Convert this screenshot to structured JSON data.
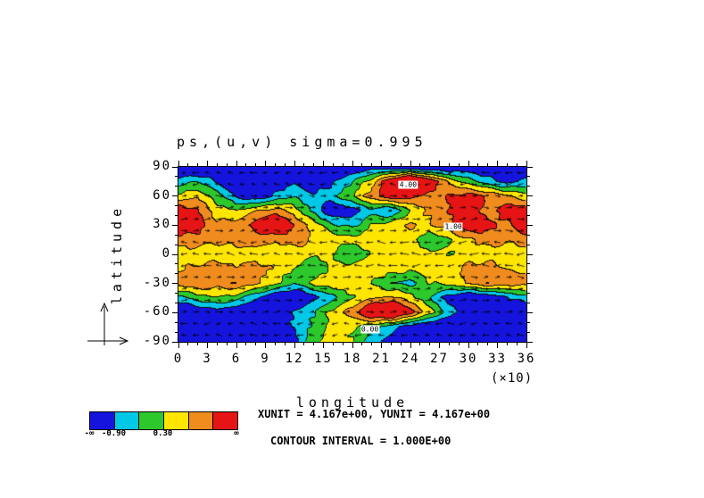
{
  "chart_data": {
    "type": "heatmap",
    "title": "ps,(u,v) sigma=0.995",
    "xlabel": "longitude",
    "ylabel": "latitude",
    "x_scale_note": "(×10)",
    "x_ticks": [
      "0",
      "3",
      "6",
      "9",
      "12",
      "15",
      "18",
      "21",
      "24",
      "27",
      "30",
      "33",
      "36"
    ],
    "y_ticks": [
      "90",
      "60",
      "30",
      "0",
      "-30",
      "-60",
      "-90"
    ],
    "x_range": [
      0,
      36
    ],
    "y_range": [
      -90,
      90
    ],
    "levels": [
      -0.9,
      -0.3,
      0.3,
      0.9,
      1.5
    ],
    "colors": [
      "#1414dc",
      "#00c8e6",
      "#2cc82c",
      "#ffe600",
      "#f08c1e",
      "#e61414"
    ],
    "grid": {
      "lat_rows": [
        90,
        75,
        60,
        45,
        30,
        15,
        0,
        -15,
        -30,
        -45,
        -60,
        -75,
        -90
      ],
      "lon_cols_x10": [
        0,
        2,
        4,
        6,
        8,
        10,
        12,
        14,
        16,
        18,
        20,
        22,
        24,
        26,
        28,
        30,
        32,
        34,
        36
      ],
      "values": [
        [
          -1.8,
          -1.8,
          -1.6,
          -1.5,
          -1.2,
          -1.0,
          -1.2,
          -1.5,
          -1.8,
          -1.5,
          -1.2,
          -1.4,
          -1.6,
          -1.8,
          -1.6,
          -1.4,
          -1.5,
          -1.7,
          -1.8
        ],
        [
          -0.6,
          -0.3,
          -1.0,
          -1.6,
          -1.8,
          -1.4,
          -1.0,
          -1.4,
          -1.0,
          -0.3,
          0.6,
          2.2,
          3.5,
          2.2,
          0.8,
          0.0,
          -0.6,
          -1.2,
          -0.6
        ],
        [
          0.5,
          0.8,
          0.0,
          -1.0,
          -1.5,
          -0.8,
          -0.3,
          -0.8,
          -0.5,
          0.3,
          1.2,
          2.0,
          1.8,
          1.2,
          1.5,
          1.8,
          1.5,
          1.0,
          0.5
        ],
        [
          2.0,
          1.5,
          0.6,
          0.3,
          0.8,
          1.2,
          0.6,
          -0.5,
          -1.5,
          -1.2,
          -0.5,
          -1.0,
          0.3,
          1.0,
          1.5,
          1.8,
          1.2,
          1.8,
          2.0
        ],
        [
          2.2,
          1.8,
          1.0,
          1.2,
          1.8,
          2.5,
          1.5,
          0.6,
          -0.2,
          -0.5,
          0.3,
          0.6,
          1.0,
          0.8,
          1.2,
          2.0,
          1.8,
          1.2,
          2.2
        ],
        [
          1.2,
          1.2,
          1.0,
          1.2,
          1.2,
          1.0,
          1.2,
          0.8,
          0.6,
          0.5,
          0.8,
          0.6,
          0.5,
          -0.2,
          0.3,
          0.8,
          1.2,
          1.0,
          1.2
        ],
        [
          0.6,
          0.6,
          0.5,
          0.6,
          0.6,
          0.5,
          0.6,
          0.5,
          0.3,
          -0.4,
          0.4,
          0.5,
          0.6,
          0.5,
          0.3,
          0.6,
          0.6,
          0.5,
          0.6
        ],
        [
          0.8,
          1.0,
          1.2,
          1.0,
          1.2,
          0.8,
          0.3,
          -0.3,
          0.5,
          0.6,
          0.8,
          0.6,
          0.5,
          0.6,
          0.8,
          1.0,
          1.2,
          0.8,
          0.8
        ],
        [
          1.2,
          1.5,
          1.2,
          1.5,
          1.0,
          0.5,
          -0.3,
          0.5,
          0.8,
          0.5,
          0.3,
          -0.3,
          -0.5,
          0.3,
          0.5,
          1.0,
          1.5,
          1.2,
          1.2
        ],
        [
          -0.5,
          0.0,
          0.3,
          0.0,
          -0.8,
          -1.5,
          -1.8,
          -1.2,
          -0.5,
          0.3,
          0.8,
          1.0,
          0.6,
          -0.3,
          -1.2,
          -1.8,
          -1.5,
          -1.0,
          -0.5
        ],
        [
          -1.8,
          -1.5,
          -1.2,
          -1.5,
          -1.8,
          -1.4,
          -0.8,
          -0.3,
          0.5,
          1.2,
          2.5,
          3.0,
          1.8,
          0.6,
          -0.5,
          -1.5,
          -1.8,
          -1.6,
          -1.8
        ],
        [
          -1.8,
          -1.8,
          -1.6,
          -1.8,
          -1.8,
          -1.5,
          -0.8,
          -0.2,
          0.4,
          0.4,
          0.0,
          -0.6,
          -1.2,
          -1.6,
          -1.8,
          -1.8,
          -1.8,
          -1.8,
          -1.8
        ],
        [
          -2.0,
          -2.0,
          -1.8,
          -1.8,
          -2.0,
          -1.8,
          -1.2,
          0.2,
          0.7,
          0.3,
          -0.6,
          -1.2,
          -1.8,
          -2.0,
          -2.0,
          -2.0,
          -2.0,
          -2.0,
          -2.0
        ]
      ]
    },
    "vector_overlay": true,
    "contour_labels": [
      {
        "text": "4.00",
        "fx": 0.66,
        "fy": 0.1
      },
      {
        "text": "1.00",
        "fx": 0.79,
        "fy": 0.34
      },
      {
        "text": "0.00",
        "fx": 0.55,
        "fy": 0.93
      }
    ],
    "colorbar": {
      "left_end_label": "-∞",
      "right_end_label": "∞",
      "boundary_labels": [
        {
          "text": "-0.90",
          "boundary_index": 0
        },
        {
          "text": "0.30",
          "boundary_index": 2
        }
      ]
    },
    "annotations": {
      "units_line": "XUNIT = 4.167e+00, YUNIT = 4.167e+00",
      "contour_line": "CONTOUR INTERVAL = 1.000E+00"
    }
  }
}
